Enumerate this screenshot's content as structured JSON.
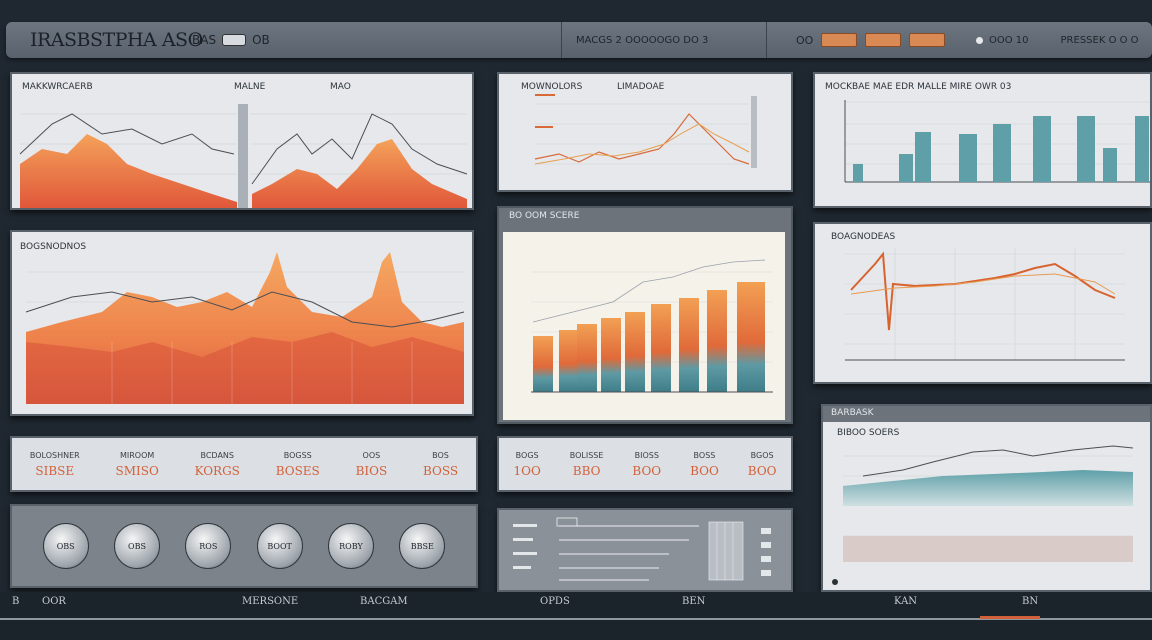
{
  "header": {
    "brand": "IRASBSTPHA",
    "brand_badge": "ASO",
    "brand_mid_a": "BAS",
    "brand_mid_b": "OB",
    "center_label": "MACGS 2 OOOOOGO DO 3",
    "right_label": "OO",
    "far_label": "OOO 10",
    "far_right_label": "PRESSEK O O O"
  },
  "panels": {
    "p1_title": "MAKKWRCAERB",
    "p1_sub_a": "MALNE",
    "p1_sub_b": "MAO",
    "p2_title": "MOWNOLORS",
    "p2_sub": "LIMADOAE",
    "p3_title": "MOCKBAE MAE EDR MALLE MIRE OWR 03",
    "p4_title": "BOGSNODNOS",
    "p5_title": "BO OOM SCERE",
    "p6_title": "BOAGNODEAS",
    "p7_title": "BARBASK",
    "p7_sub": "BIBOO SOERS"
  },
  "stats": [
    {
      "label": "BOLOSHNER",
      "value": "SIBSE"
    },
    {
      "label": "MIROOM",
      "value": "SMISO"
    },
    {
      "label": "BCDANS",
      "value": "KORGS"
    },
    {
      "label": "BOGSS",
      "value": "BOSES"
    },
    {
      "label": "OOS",
      "value": "BIOS"
    },
    {
      "label": "BOS",
      "value": "BOSS"
    }
  ],
  "mid_stats": [
    {
      "label": "BOGS",
      "value": "1OO"
    },
    {
      "label": "BOLISSE",
      "value": "BBO"
    },
    {
      "label": "BIOSS",
      "value": "BOO"
    },
    {
      "label": "BOSS",
      "value": "BOO"
    },
    {
      "label": "BGOS",
      "value": "BOO"
    }
  ],
  "gauges": [
    "OBS",
    "OBS",
    "ROS",
    "BOOT",
    "ROBY",
    "BBSE"
  ],
  "footer": {
    "left_a": "B",
    "left_b": "OOR",
    "center_a": "MERSONE",
    "center_b": "BACGAM",
    "center_c": "OPDS",
    "right_a": "BEN",
    "right_b": "KAN",
    "right_c": "BN"
  },
  "colors": {
    "accent_orange": "#f08a3a",
    "accent_red": "#d2613a",
    "accent_teal": "#5f9fa8",
    "background": "#1f2831"
  }
}
